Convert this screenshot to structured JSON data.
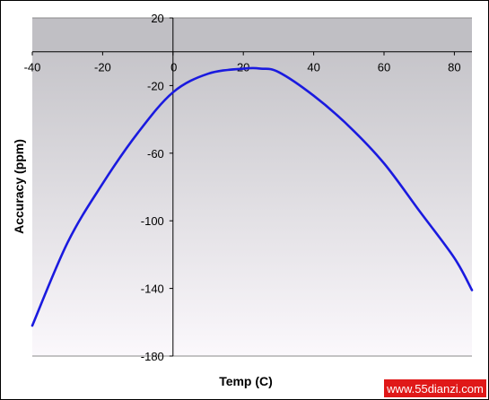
{
  "chart_data": {
    "type": "line",
    "title": "",
    "xlabel": "Temp (C)",
    "ylabel": "Accuracy (ppm)",
    "xlim": [
      -40,
      85
    ],
    "ylim": [
      -180,
      20
    ],
    "x_ticks": [
      -40,
      -20,
      0,
      20,
      40,
      60,
      80
    ],
    "y_ticks": [
      20,
      -20,
      -60,
      -100,
      -140,
      -180
    ],
    "grid": false,
    "legend": "none",
    "series": [
      {
        "color": "#1a1adf",
        "x": [
          -40,
          -30,
          -20,
          -10,
          0,
          10,
          20,
          25,
          30,
          40,
          50,
          60,
          70,
          80,
          85
        ],
        "y": [
          -162,
          -113,
          -78,
          -48,
          -24,
          -13,
          -10,
          -10,
          -12,
          -26,
          -44,
          -66,
          -94,
          -122,
          -141
        ]
      }
    ]
  },
  "colors": {
    "plot_bg_top": "#c0bfc4",
    "plot_bg_bottom": "#fbf8fc",
    "above_zero_band": "#c0bfc4"
  },
  "watermark": "www.55dianzi.com"
}
